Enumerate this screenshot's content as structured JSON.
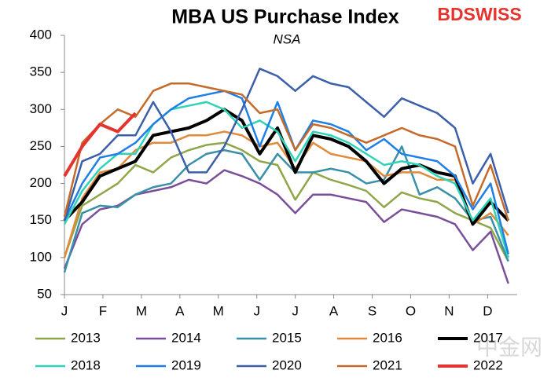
{
  "chart_data": {
    "type": "line",
    "title": "MBA US Purchase Index",
    "subtitle": "NSA",
    "logo": "BDSWISS",
    "watermark": "中金网",
    "x": [
      0,
      2,
      4,
      6,
      8,
      10,
      12,
      14,
      16,
      18,
      20,
      22,
      24,
      26,
      28,
      30,
      32,
      34,
      36,
      38,
      40,
      42,
      44,
      46,
      48,
      50
    ],
    "xlim": [
      0,
      51
    ],
    "xticks": [
      {
        "value": 0,
        "label": "J"
      },
      {
        "value": 4.33,
        "label": "F"
      },
      {
        "value": 8.67,
        "label": "M"
      },
      {
        "value": 13,
        "label": "A"
      },
      {
        "value": 17.33,
        "label": "M"
      },
      {
        "value": 21.67,
        "label": "J"
      },
      {
        "value": 26,
        "label": "J"
      },
      {
        "value": 30.33,
        "label": "A"
      },
      {
        "value": 34.67,
        "label": "S"
      },
      {
        "value": 39,
        "label": "O"
      },
      {
        "value": 43.33,
        "label": "N"
      },
      {
        "value": 47.67,
        "label": "D"
      }
    ],
    "ylim": [
      50,
      400
    ],
    "yticks": [
      50,
      100,
      150,
      200,
      250,
      300,
      350,
      400
    ],
    "series": [
      {
        "name": "2013",
        "color": "#8fa64a",
        "values": [
          100,
          170,
          185,
          200,
          225,
          215,
          235,
          245,
          252,
          255,
          245,
          230,
          225,
          178,
          215,
          205,
          198,
          190,
          168,
          188,
          180,
          175,
          160,
          150,
          140,
          95
        ]
      },
      {
        "name": "2014",
        "color": "#7a4f9a",
        "values": [
          85,
          145,
          165,
          170,
          185,
          190,
          195,
          205,
          200,
          218,
          210,
          200,
          185,
          160,
          185,
          185,
          180,
          175,
          148,
          165,
          160,
          155,
          145,
          110,
          135,
          65
        ]
      },
      {
        "name": "2015",
        "color": "#3a90a8",
        "values": [
          80,
          160,
          170,
          168,
          185,
          195,
          200,
          225,
          240,
          245,
          240,
          205,
          240,
          215,
          215,
          220,
          215,
          200,
          205,
          250,
          185,
          195,
          180,
          150,
          155,
          95
        ]
      },
      {
        "name": "2016",
        "color": "#e08a3a",
        "values": [
          100,
          180,
          215,
          220,
          245,
          255,
          255,
          265,
          265,
          270,
          265,
          250,
          255,
          220,
          255,
          240,
          235,
          230,
          210,
          215,
          215,
          205,
          205,
          145,
          160,
          130
        ]
      },
      {
        "name": "2017",
        "color": "#000000",
        "values": [
          150,
          175,
          210,
          220,
          230,
          265,
          270,
          275,
          285,
          300,
          285,
          240,
          275,
          215,
          265,
          260,
          250,
          230,
          200,
          220,
          225,
          215,
          210,
          145,
          175,
          150
        ]
      },
      {
        "name": "2018",
        "color": "#2fd3b8",
        "values": [
          145,
          190,
          220,
          240,
          240,
          280,
          300,
          305,
          310,
          300,
          275,
          285,
          270,
          230,
          270,
          265,
          255,
          240,
          225,
          230,
          225,
          210,
          200,
          150,
          180,
          100
        ]
      },
      {
        "name": "2019",
        "color": "#1e7fe6",
        "values": [
          150,
          200,
          235,
          240,
          255,
          280,
          300,
          315,
          320,
          325,
          315,
          250,
          310,
          245,
          285,
          280,
          270,
          245,
          260,
          240,
          235,
          230,
          210,
          165,
          200,
          105
        ]
      },
      {
        "name": "2020",
        "color": "#3b5fa8",
        "values": [
          150,
          230,
          240,
          265,
          265,
          310,
          270,
          215,
          215,
          250,
          300,
          355,
          345,
          325,
          345,
          335,
          330,
          310,
          290,
          315,
          305,
          295,
          275,
          200,
          240,
          160
        ]
      },
      {
        "name": "2021",
        "color": "#c46a2a",
        "values": [
          155,
          255,
          280,
          300,
          290,
          325,
          335,
          335,
          330,
          325,
          320,
          295,
          300,
          245,
          280,
          275,
          265,
          255,
          265,
          275,
          265,
          260,
          250,
          170,
          225,
          150
        ]
      },
      {
        "name": "2022",
        "color": "#e3342f",
        "values": [
          210,
          250,
          280,
          270,
          295,
          null,
          null,
          null,
          null,
          null,
          null,
          null,
          null,
          null,
          null,
          null,
          null,
          null,
          null,
          null,
          null,
          null,
          null,
          null,
          null,
          null
        ]
      }
    ]
  }
}
